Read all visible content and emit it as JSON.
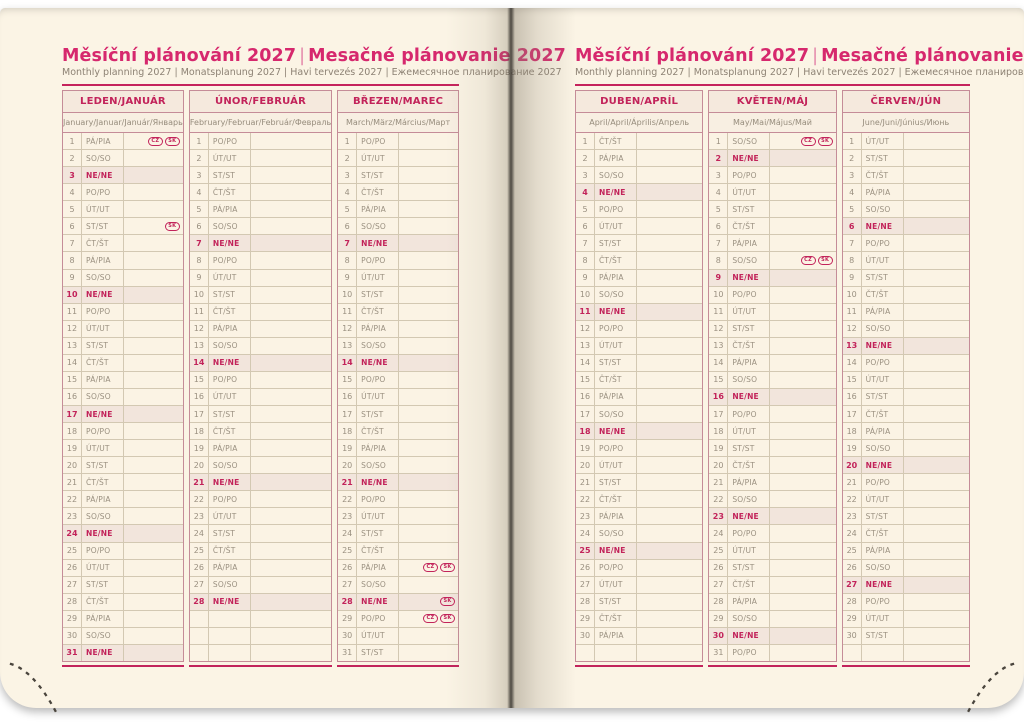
{
  "title": {
    "cz": "Měsíční plánování 2027",
    "sep": "|",
    "sk": "Mesačné plánovanie 2027",
    "subtitle": "Monthly planning 2027 | Monatsplanung 2027 | Havi tervezés 2027 | Ежемесячное планирование 2027"
  },
  "colors": {
    "title_pink": "#D6286D",
    "accent_crimson": "#C2235A",
    "rule_magenta": "#C2235C",
    "paper_cream": "#FBF4E5",
    "sunday_row_bg": "#F2E5DC"
  },
  "badge_labels": [
    "CZ",
    "SK"
  ],
  "day_abbreviations": [
    "PO/PO",
    "ÚT/UT",
    "ST/ST",
    "ČT/ŠT",
    "PÁ/PIA",
    "SO/SO",
    "NE/NE"
  ],
  "sunday_label": "NE/NE",
  "months": [
    {
      "name": "LEDEN/JANUÁR",
      "subtitle": "January/Januar/Január/Январь",
      "page": "left",
      "pad_rows": 0,
      "day_labels": [
        "PÁ/PIA",
        "SO/SO",
        "NE/NE",
        "PO/PO",
        "ÚT/UT",
        "ST/ST",
        "ČT/ŠT",
        "PÁ/PIA",
        "SO/SO",
        "NE/NE",
        "PO/PO",
        "ÚT/UT",
        "ST/ST",
        "ČT/ŠT",
        "PÁ/PIA",
        "SO/SO",
        "NE/NE",
        "PO/PO",
        "ÚT/UT",
        "ST/ST",
        "ČT/ŠT",
        "PÁ/PIA",
        "SO/SO",
        "NE/NE",
        "PO/PO",
        "ÚT/UT",
        "ST/ST",
        "ČT/ŠT",
        "PÁ/PIA",
        "SO/SO",
        "NE/NE"
      ],
      "badges": {
        "1": [
          "CZ",
          "SK"
        ],
        "6": [
          "SK"
        ]
      }
    },
    {
      "name": "ÚNOR/FEBRUÁR",
      "subtitle": "February/Februar/Február/Февраль",
      "page": "left",
      "pad_rows": 3,
      "day_labels": [
        "PO/PO",
        "ÚT/UT",
        "ST/ST",
        "ČT/ŠT",
        "PÁ/PIA",
        "SO/SO",
        "NE/NE",
        "PO/PO",
        "ÚT/UT",
        "ST/ST",
        "ČT/ŠT",
        "PÁ/PIA",
        "SO/SO",
        "NE/NE",
        "PO/PO",
        "ÚT/UT",
        "ST/ST",
        "ČT/ŠT",
        "PÁ/PIA",
        "SO/SO",
        "NE/NE",
        "PO/PO",
        "ÚT/UT",
        "ST/ST",
        "ČT/ŠT",
        "PÁ/PIA",
        "SO/SO",
        "NE/NE"
      ],
      "badges": {}
    },
    {
      "name": "BŘEZEN/MAREC",
      "subtitle": "March/März/Március/Март",
      "page": "left",
      "pad_rows": 0,
      "day_labels": [
        "PO/PO",
        "ÚT/UT",
        "ST/ST",
        "ČT/ŠT",
        "PÁ/PIA",
        "SO/SO",
        "NE/NE",
        "PO/PO",
        "ÚT/UT",
        "ST/ST",
        "ČT/ŠT",
        "PÁ/PIA",
        "SO/SO",
        "NE/NE",
        "PO/PO",
        "ÚT/UT",
        "ST/ST",
        "ČT/ŠT",
        "PÁ/PIA",
        "SO/SO",
        "NE/NE",
        "PO/PO",
        "ÚT/UT",
        "ST/ST",
        "ČT/ŠT",
        "PÁ/PIA",
        "SO/SO",
        "NE/NE",
        "PO/PO",
        "ÚT/UT",
        "ST/ST"
      ],
      "badges": {
        "26": [
          "CZ",
          "SK"
        ],
        "28": [
          "SK"
        ],
        "29": [
          "CZ",
          "SK"
        ]
      }
    },
    {
      "name": "DUBEN/APRÍL",
      "subtitle": "April/April/Április/Апрель",
      "page": "right",
      "pad_rows": 1,
      "day_labels": [
        "ČT/ŠT",
        "PÁ/PIA",
        "SO/SO",
        "NE/NE",
        "PO/PO",
        "ÚT/UT",
        "ST/ST",
        "ČT/ŠT",
        "PÁ/PIA",
        "SO/SO",
        "NE/NE",
        "PO/PO",
        "ÚT/UT",
        "ST/ST",
        "ČT/ŠT",
        "PÁ/PIA",
        "SO/SO",
        "NE/NE",
        "PO/PO",
        "ÚT/UT",
        "ST/ST",
        "ČT/ŠT",
        "PÁ/PIA",
        "SO/SO",
        "NE/NE",
        "PO/PO",
        "ÚT/UT",
        "ST/ST",
        "ČT/ŠT",
        "PÁ/PIA"
      ],
      "badges": {}
    },
    {
      "name": "KVĚTEN/MÁJ",
      "subtitle": "May/Mai/Május/Май",
      "page": "right",
      "pad_rows": 0,
      "day_labels": [
        "SO/SO",
        "NE/NE",
        "PO/PO",
        "ÚT/UT",
        "ST/ST",
        "ČT/ŠT",
        "PÁ/PIA",
        "SO/SO",
        "NE/NE",
        "PO/PO",
        "ÚT/UT",
        "ST/ST",
        "ČT/ŠT",
        "PÁ/PIA",
        "SO/SO",
        "NE/NE",
        "PO/PO",
        "ÚT/UT",
        "ST/ST",
        "ČT/ŠT",
        "PÁ/PIA",
        "SO/SO",
        "NE/NE",
        "PO/PO",
        "ÚT/UT",
        "ST/ST",
        "ČT/ŠT",
        "PÁ/PIA",
        "SO/SO",
        "NE/NE",
        "PO/PO"
      ],
      "badges": {
        "1": [
          "CZ",
          "SK"
        ],
        "8": [
          "CZ",
          "SK"
        ]
      }
    },
    {
      "name": "ČERVEN/JÚN",
      "subtitle": "June/Juni/Június/Июнь",
      "page": "right",
      "pad_rows": 1,
      "day_labels": [
        "ÚT/UT",
        "ST/ST",
        "ČT/ŠT",
        "PÁ/PIA",
        "SO/SO",
        "NE/NE",
        "PO/PO",
        "ÚT/UT",
        "ST/ST",
        "ČT/ŠT",
        "PÁ/PIA",
        "SO/SO",
        "NE/NE",
        "PO/PO",
        "ÚT/UT",
        "ST/ST",
        "ČT/ŠT",
        "PÁ/PIA",
        "SO/SO",
        "NE/NE",
        "PO/PO",
        "ÚT/UT",
        "ST/ST",
        "ČT/ŠT",
        "PÁ/PIA",
        "SO/SO",
        "NE/NE",
        "PO/PO",
        "ÚT/UT",
        "ST/ST"
      ],
      "badges": {}
    }
  ]
}
